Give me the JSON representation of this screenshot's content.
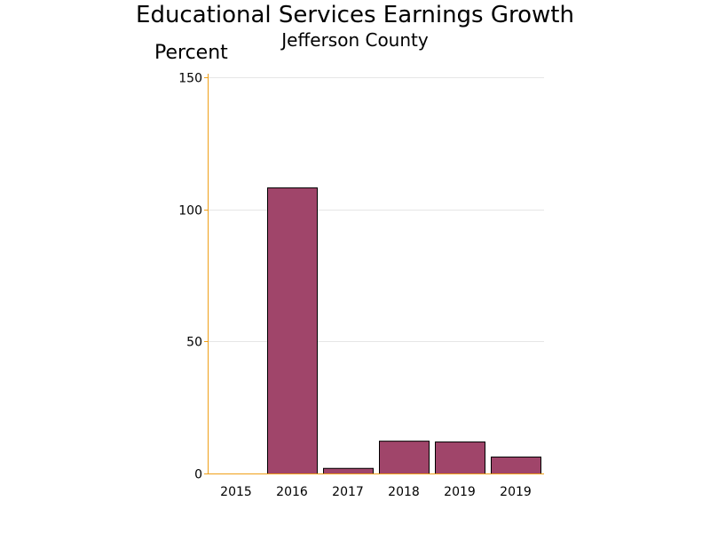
{
  "chart_data": {
    "type": "bar",
    "title": "Educational Services Earnings Growth",
    "subtitle": "Jefferson County",
    "ylabel": "Percent",
    "xlabel": "",
    "categories": [
      "2015",
      "2016",
      "2017",
      "2018",
      "2019",
      "2019"
    ],
    "values": [
      0,
      108.3,
      2.1,
      12.4,
      12.1,
      6.4
    ],
    "ylim": [
      0,
      150
    ],
    "yticks": [
      0,
      50,
      100,
      150
    ],
    "grid": true,
    "colors": {
      "bar_fill": "#a0456a",
      "bar_stroke": "#000000",
      "axis": "#f0a018",
      "grid": "#e6e6e6"
    }
  }
}
